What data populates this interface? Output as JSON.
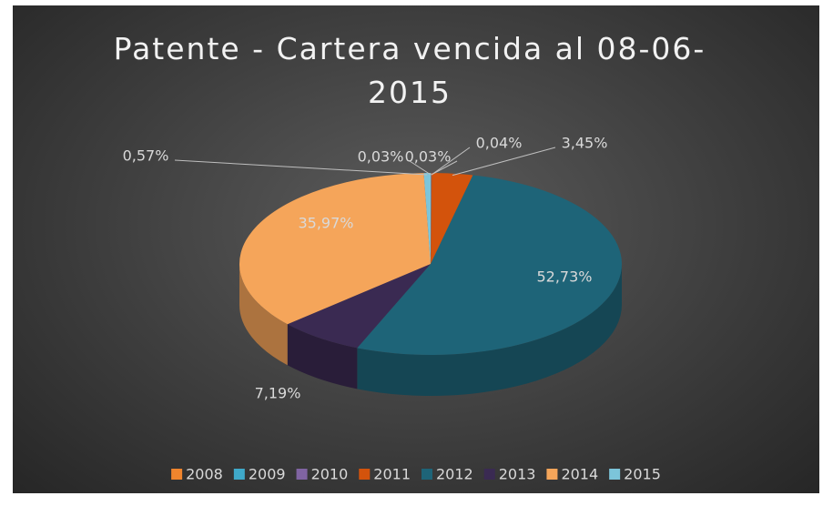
{
  "chart_data": {
    "type": "pie",
    "title": "Patente - Cartera vencida al 08-06-2015",
    "categories": [
      "2008",
      "2009",
      "2010",
      "2011",
      "2012",
      "2013",
      "2014",
      "2015"
    ],
    "values": [
      0.03,
      0.03,
      0.04,
      3.45,
      52.73,
      7.19,
      35.97,
      0.57
    ],
    "value_labels": [
      "0,03%",
      "0,03%",
      "0,04%",
      "3,45%",
      "52,73%",
      "7,19%",
      "35,97%",
      "0,57%"
    ],
    "colors": [
      "#f0852d",
      "#3fa9c9",
      "#8064a2",
      "#d3530c",
      "#1e6478",
      "#3a2a52",
      "#f5a55a",
      "#7cc5da"
    ],
    "legend": "bottom"
  }
}
